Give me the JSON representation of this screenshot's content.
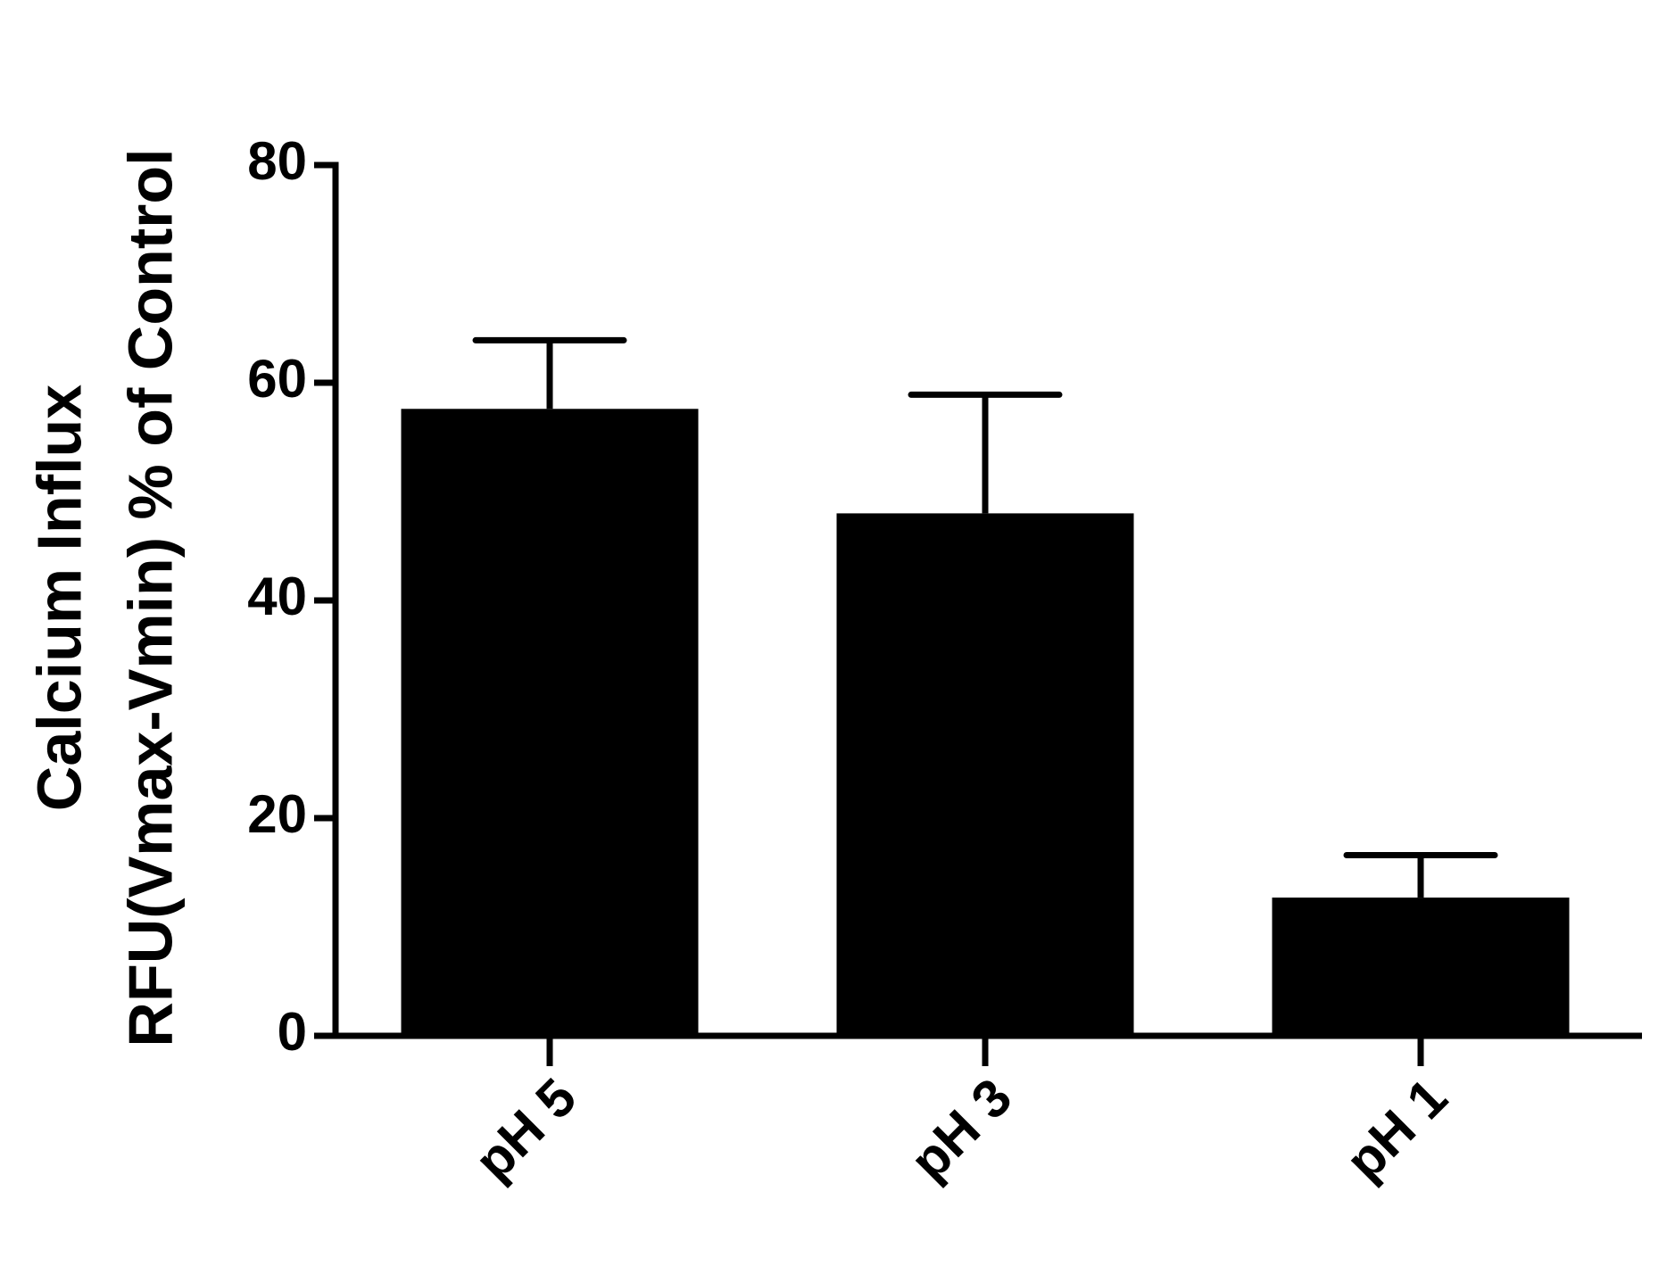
{
  "chart_data": {
    "type": "bar",
    "y_label_lines": [
      "Calcium Influx",
      "RFU(Vmax-Vmin) % of Control"
    ],
    "categories": [
      "pH 5",
      "pH 3",
      "pH 1"
    ],
    "values": [
      57.6,
      48.0,
      12.7
    ],
    "errors": [
      6.3,
      10.9,
      3.9
    ],
    "color": "#000000",
    "ylim": [
      0,
      80
    ],
    "yticks": [
      0,
      20,
      40,
      60,
      80
    ],
    "grid": false
  }
}
